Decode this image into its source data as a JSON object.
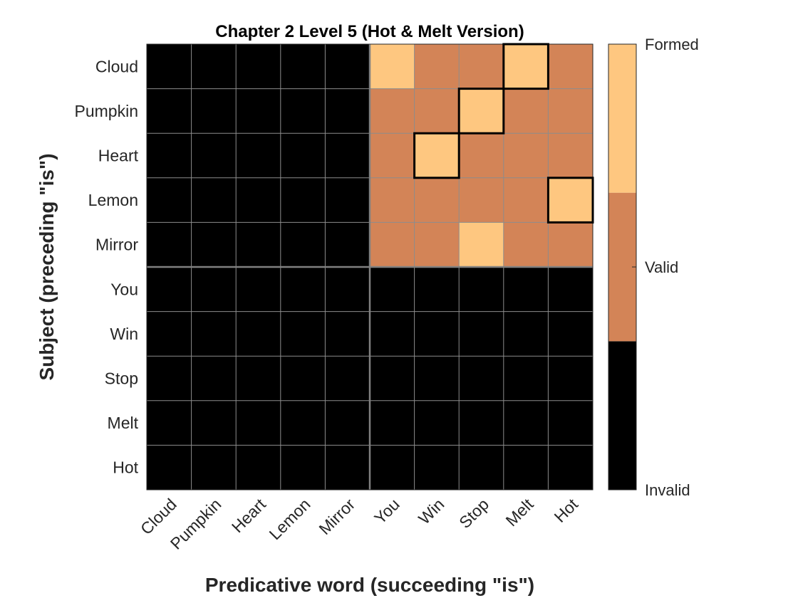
{
  "chart_data": {
    "type": "heatmap",
    "title": "Chapter 2 Level 5 (Hot & Melt Version)",
    "xlabel": "Predicative word (succeeding \"is\")",
    "ylabel": "Subject (preceding \"is\")",
    "x_categories": [
      "Cloud",
      "Pumpkin",
      "Heart",
      "Lemon",
      "Mirror",
      "You",
      "Win",
      "Stop",
      "Melt",
      "Hot"
    ],
    "y_categories": [
      "Cloud",
      "Pumpkin",
      "Heart",
      "Lemon",
      "Mirror",
      "You",
      "Win",
      "Stop",
      "Melt",
      "Hot"
    ],
    "colorbar": {
      "labels": [
        "Invalid",
        "Valid",
        "Formed"
      ],
      "values": [
        0,
        1,
        2
      ],
      "colors": [
        "#000000",
        "#d38457",
        "#fec780"
      ]
    },
    "values": [
      [
        0,
        0,
        0,
        0,
        0,
        2,
        1,
        1,
        2,
        1
      ],
      [
        0,
        0,
        0,
        0,
        0,
        1,
        1,
        2,
        1,
        1
      ],
      [
        0,
        0,
        0,
        0,
        0,
        1,
        2,
        1,
        1,
        1
      ],
      [
        0,
        0,
        0,
        0,
        0,
        1,
        1,
        1,
        1,
        2
      ],
      [
        0,
        0,
        0,
        0,
        0,
        1,
        1,
        2,
        1,
        1
      ],
      [
        0,
        0,
        0,
        0,
        0,
        0,
        0,
        0,
        0,
        0
      ],
      [
        0,
        0,
        0,
        0,
        0,
        0,
        0,
        0,
        0,
        0
      ],
      [
        0,
        0,
        0,
        0,
        0,
        0,
        0,
        0,
        0,
        0
      ],
      [
        0,
        0,
        0,
        0,
        0,
        0,
        0,
        0,
        0,
        0
      ],
      [
        0,
        0,
        0,
        0,
        0,
        0,
        0,
        0,
        0,
        0
      ]
    ],
    "highlighted_cells": [
      [
        0,
        8
      ],
      [
        1,
        7
      ],
      [
        2,
        6
      ],
      [
        3,
        9
      ]
    ],
    "divider_after_index": 4,
    "grid": true
  }
}
